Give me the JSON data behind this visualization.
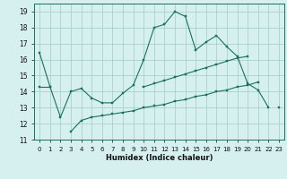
{
  "title": "",
  "xlabel": "Humidex (Indice chaleur)",
  "bg_color": "#d6f0ef",
  "grid_color": "#a0ccc8",
  "line_color": "#1a7060",
  "xlim": [
    -0.5,
    23.5
  ],
  "ylim": [
    11,
    19.5
  ],
  "yticks": [
    11,
    12,
    13,
    14,
    15,
    16,
    17,
    18,
    19
  ],
  "xticks": [
    0,
    1,
    2,
    3,
    4,
    5,
    6,
    7,
    8,
    9,
    10,
    11,
    12,
    13,
    14,
    15,
    16,
    17,
    18,
    19,
    20,
    21,
    22,
    23
  ],
  "series1_y": [
    16.4,
    14.3,
    12.4,
    14.0,
    14.2,
    13.6,
    13.3,
    13.3,
    13.9,
    14.4,
    16.0,
    18.0,
    18.2,
    19.0,
    18.7,
    16.6,
    17.1,
    17.5,
    16.8,
    16.2,
    14.5,
    14.1,
    13.0,
    null
  ],
  "series2_y": [
    null,
    null,
    null,
    11.5,
    12.2,
    12.4,
    12.5,
    12.6,
    12.7,
    12.8,
    13.0,
    13.1,
    13.2,
    13.4,
    13.5,
    13.7,
    13.8,
    14.0,
    14.1,
    14.3,
    14.4,
    14.6,
    null,
    13.0
  ],
  "series3_y": [
    14.3,
    14.3,
    null,
    null,
    null,
    null,
    null,
    null,
    null,
    null,
    14.3,
    14.5,
    14.7,
    14.9,
    15.1,
    15.3,
    15.5,
    15.7,
    15.9,
    16.1,
    16.2,
    null,
    null,
    null
  ]
}
